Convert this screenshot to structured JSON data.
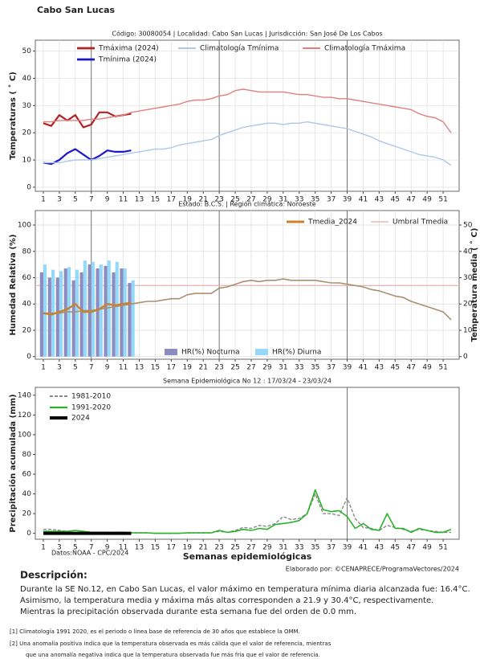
{
  "page": {
    "title": "Cabo San Lucas",
    "description": {
      "heading": "Descripción:",
      "lines": [
        "Durante la SE No.12, en Cabo San Lucas, el valor máximo en temperatura mínima diaria alcanzada fue: 16.4°C.",
        "Asimismo, la temperatura media y máxima más altas corresponden a 21.9 y 30.4°C, respectivamente.",
        "Mientras la precipitación observada durante esta semana fue del orden de  0.0 mm."
      ]
    },
    "footnotes": [
      "[1] Climatología 1991 2020, es el periodo o línea base de referencia de 30 años que establece la OMM.",
      "[2] Una anomalía positiva indica que la temperatura observada es más cálida que el valor de referencia, mientras",
      "que una anomalía negativa indica que la temperatura observada fue más fría que el valor de referencia."
    ]
  },
  "chart_data": [
    {
      "type": "line",
      "subtitle": "Código: 30080054  |  Localidad: Cabo San Lucas  |  Jurisdicción: San José De Los Cabos",
      "ylabel": "Temperaturas ( ˚ C)",
      "x": [
        1,
        2,
        3,
        4,
        5,
        6,
        7,
        8,
        9,
        10,
        11,
        12,
        13,
        14,
        15,
        16,
        17,
        18,
        19,
        20,
        21,
        22,
        23,
        24,
        25,
        26,
        27,
        28,
        29,
        30,
        31,
        32,
        33,
        34,
        35,
        36,
        37,
        38,
        39,
        40,
        41,
        42,
        43,
        44,
        45,
        46,
        47,
        48,
        49,
        50,
        51,
        52
      ],
      "xlim": [
        0,
        53
      ],
      "xticks": [
        1,
        3,
        5,
        7,
        9,
        11,
        13,
        15,
        17,
        19,
        21,
        23,
        25,
        27,
        29,
        31,
        33,
        35,
        37,
        39,
        41,
        43,
        45,
        47,
        49,
        51
      ],
      "ylim": [
        -1.5,
        54
      ],
      "yticks": [
        0,
        10,
        20,
        30,
        40,
        50
      ],
      "grid": true,
      "vlines": [
        7,
        23,
        39
      ],
      "series": [
        {
          "name": "Tmáxima (2024)",
          "color": "#b22222",
          "linewidth": 2.2,
          "values": [
            23.5,
            22.5,
            26.5,
            24.5,
            26.5,
            22,
            23,
            27.5,
            27.5,
            26,
            26.5,
            27,
            null,
            null,
            null,
            null,
            null,
            null,
            null,
            null,
            null,
            null,
            null,
            null,
            null,
            null,
            null,
            null,
            null,
            null,
            null,
            null,
            null,
            null,
            null,
            null,
            null,
            null,
            null,
            null,
            null,
            null,
            null,
            null,
            null,
            null,
            null,
            null,
            null,
            null,
            null,
            null
          ]
        },
        {
          "name": "Tmínima (2024)",
          "color": "#1a1acd",
          "linewidth": 2.2,
          "values": [
            9,
            8.5,
            10,
            12.5,
            14,
            12,
            10,
            11.5,
            13.5,
            13,
            13,
            13.5,
            null,
            null,
            null,
            null,
            null,
            null,
            null,
            null,
            null,
            null,
            null,
            null,
            null,
            null,
            null,
            null,
            null,
            null,
            null,
            null,
            null,
            null,
            null,
            null,
            null,
            null,
            null,
            null,
            null,
            null,
            null,
            null,
            null,
            null,
            null,
            null,
            null,
            null,
            null,
            null
          ]
        },
        {
          "name": "Climatología Tmínima",
          "color": "#b0c8e8",
          "linewidth": 1.4,
          "values": [
            9,
            9,
            9,
            9.5,
            10,
            10,
            10,
            10.5,
            11,
            11.5,
            12,
            12.5,
            13,
            13.5,
            14,
            14,
            14.5,
            15.5,
            16,
            16.5,
            17,
            17.5,
            19,
            20,
            21,
            22,
            22.5,
            23,
            23.5,
            23.5,
            23,
            23.5,
            23.5,
            24,
            23.5,
            23,
            22.5,
            22,
            21.5,
            20.5,
            19.5,
            18.5,
            17,
            16,
            15,
            14,
            13,
            12,
            11.5,
            11,
            10,
            8
          ]
        },
        {
          "name": "Climatología Tmáxima",
          "color": "#e08080",
          "linewidth": 1.4,
          "values": [
            24,
            24,
            24.5,
            24.5,
            24.5,
            24.5,
            25,
            25,
            25.5,
            26,
            26.5,
            27.5,
            28,
            28.5,
            29,
            29.5,
            30,
            30.5,
            31.5,
            32,
            32,
            32.5,
            33.5,
            34,
            35.5,
            36,
            35.5,
            35,
            35,
            35,
            35,
            34.5,
            34,
            34,
            33.5,
            33,
            33,
            32.5,
            32.5,
            32,
            31.5,
            31,
            30.5,
            30,
            29.5,
            29,
            28.5,
            27,
            26,
            25.5,
            24,
            20
          ]
        }
      ]
    },
    {
      "type": "combo",
      "subtitle": "Estado: B.C.S.  |  Región climática: Noroeste",
      "ylabel": "Humedad Relativa (%)",
      "y2label": "Temperatura media ( ˚ C)",
      "x": [
        1,
        2,
        3,
        4,
        5,
        6,
        7,
        8,
        9,
        10,
        11,
        12,
        13,
        14,
        15,
        16,
        17,
        18,
        19,
        20,
        21,
        22,
        23,
        24,
        25,
        26,
        27,
        28,
        29,
        30,
        31,
        32,
        33,
        34,
        35,
        36,
        37,
        38,
        39,
        40,
        41,
        42,
        43,
        44,
        45,
        46,
        47,
        48,
        49,
        50,
        51,
        52
      ],
      "xlim": [
        0,
        53
      ],
      "xticks": [
        1,
        3,
        5,
        7,
        9,
        11,
        13,
        15,
        17,
        19,
        21,
        23,
        25,
        27,
        29,
        31,
        33,
        35,
        37,
        39,
        41,
        43,
        45,
        47,
        49,
        51
      ],
      "ylim": [
        -2,
        111
      ],
      "yticks": [
        0,
        20,
        40,
        60,
        80,
        100
      ],
      "y2lim": [
        -1,
        55.5
      ],
      "y2ticks": [
        0,
        10,
        20,
        30,
        40,
        50
      ],
      "grid": true,
      "vlines": [
        7,
        23,
        39
      ],
      "reference_line": {
        "name": "Umbral Tmedia",
        "value": 27,
        "color": "#e8b8b8",
        "axis": "y2"
      },
      "series": [
        {
          "name": "HR(%) Nocturna",
          "kind": "bar",
          "color": "#8c8cc0",
          "values": [
            64,
            60,
            60,
            67,
            58,
            64,
            70,
            67,
            69,
            64,
            67,
            56,
            null,
            null,
            null,
            null,
            null,
            null,
            null,
            null,
            null,
            null,
            null,
            null,
            null,
            null,
            null,
            null,
            null,
            null,
            null,
            null,
            null,
            null,
            null,
            null,
            null,
            null,
            null,
            null,
            null,
            null,
            null,
            null,
            null,
            null,
            null,
            null,
            null,
            null,
            null,
            null
          ]
        },
        {
          "name": "HR(%) Diurna",
          "kind": "bar",
          "color": "#96d8f8",
          "values": [
            70,
            66,
            65,
            68,
            66,
            73,
            72,
            70,
            73,
            72,
            67,
            58,
            null,
            null,
            null,
            null,
            null,
            null,
            null,
            null,
            null,
            null,
            null,
            null,
            null,
            null,
            null,
            null,
            null,
            null,
            null,
            null,
            null,
            null,
            null,
            null,
            null,
            null,
            null,
            null,
            null,
            null,
            null,
            null,
            null,
            null,
            null,
            null,
            null,
            null,
            null,
            null
          ]
        },
        {
          "kind": "line",
          "axis": "y2",
          "color": "#a89070",
          "linewidth": 1.6,
          "values": [
            16.5,
            16.5,
            16.5,
            17,
            17,
            17.5,
            17.5,
            18,
            18.5,
            19,
            19.5,
            20,
            20.5,
            21,
            21,
            21.5,
            22,
            22,
            23.5,
            24,
            24,
            24,
            26,
            26.5,
            27.5,
            28.5,
            29,
            28.5,
            29,
            29,
            29.5,
            29,
            29,
            29,
            29,
            28.5,
            28,
            28,
            27.5,
            27,
            26.5,
            25.5,
            25,
            24,
            23,
            22.5,
            21,
            20,
            19,
            18,
            17,
            14
          ]
        },
        {
          "name": "Tmedia_2024",
          "kind": "line",
          "axis": "y2",
          "color": "#c8822e",
          "linewidth": 2.4,
          "values": [
            16.5,
            16,
            17,
            18,
            20,
            17,
            17,
            18,
            20,
            19.5,
            20,
            20.5,
            null,
            null,
            null,
            null,
            null,
            null,
            null,
            null,
            null,
            null,
            null,
            null,
            null,
            null,
            null,
            null,
            null,
            null,
            null,
            null,
            null,
            null,
            null,
            null,
            null,
            null,
            null,
            null,
            null,
            null,
            null,
            null,
            null,
            null,
            null,
            null,
            null,
            null,
            null,
            null
          ]
        }
      ]
    },
    {
      "type": "line",
      "title": "Semana Epidemiológica No 12  :    17/03/24 - 23/03/24",
      "ylabel": "Precipitación acumulada (mm)",
      "xlabel": "Semanas epidemiológicas",
      "annotations": [
        "Datos:NOAA - CPC/2024",
        "Elaborado por: ©CENAPRECE/ProgramaVectores/2024"
      ],
      "x": [
        1,
        2,
        3,
        4,
        5,
        6,
        7,
        8,
        9,
        10,
        11,
        12,
        13,
        14,
        15,
        16,
        17,
        18,
        19,
        20,
        21,
        22,
        23,
        24,
        25,
        26,
        27,
        28,
        29,
        30,
        31,
        32,
        33,
        34,
        35,
        36,
        37,
        38,
        39,
        40,
        41,
        42,
        43,
        44,
        45,
        46,
        47,
        48,
        49,
        50,
        51,
        52
      ],
      "xlim": [
        0,
        53
      ],
      "xticks": [
        1,
        3,
        5,
        7,
        9,
        11,
        13,
        15,
        17,
        19,
        21,
        23,
        25,
        27,
        29,
        31,
        33,
        35,
        37,
        39,
        41,
        43,
        45,
        47,
        49,
        51
      ],
      "ylim": [
        -6,
        148
      ],
      "yticks": [
        0,
        20,
        40,
        60,
        80,
        100,
        120,
        140
      ],
      "grid": false,
      "vlines": [
        39
      ],
      "series": [
        {
          "name": "1981-2010",
          "color": "#888888",
          "linewidth": 1.4,
          "dash": true,
          "values": [
            4,
            4,
            3,
            2,
            3,
            2,
            1,
            1,
            1,
            1,
            1,
            0.5,
            0.5,
            0.5,
            0,
            0,
            0,
            0,
            0.5,
            0.5,
            0.5,
            0.5,
            2,
            1,
            3,
            6,
            5,
            8,
            7,
            10,
            17,
            14,
            15,
            20,
            40,
            20,
            20,
            18,
            36,
            15,
            6,
            5,
            3,
            8,
            6,
            4,
            2,
            4,
            3,
            2,
            1,
            1
          ]
        },
        {
          "name": "1991-2020",
          "color": "#2ab32a",
          "linewidth": 1.6,
          "values": [
            2,
            2,
            2,
            2,
            3,
            2,
            1,
            1,
            1,
            1,
            1,
            0.5,
            0.5,
            0.5,
            0,
            0,
            0,
            0,
            0.5,
            0.5,
            0.5,
            0.5,
            3,
            1,
            2,
            4,
            3,
            5,
            4,
            9,
            10,
            11,
            13,
            20,
            44,
            24,
            22,
            23,
            17,
            5,
            10,
            4,
            3,
            20,
            5,
            5,
            1,
            5,
            3,
            1,
            1,
            4
          ]
        },
        {
          "name": "2024",
          "color": "#000000",
          "linewidth": 4,
          "values": [
            0,
            0,
            0,
            0,
            0,
            0,
            0,
            0,
            0,
            0,
            0,
            0,
            null,
            null,
            null,
            null,
            null,
            null,
            null,
            null,
            null,
            null,
            null,
            null,
            null,
            null,
            null,
            null,
            null,
            null,
            null,
            null,
            null,
            null,
            null,
            null,
            null,
            null,
            null,
            null,
            null,
            null,
            null,
            null,
            null,
            null,
            null,
            null,
            null,
            null,
            null,
            null
          ]
        }
      ]
    }
  ]
}
